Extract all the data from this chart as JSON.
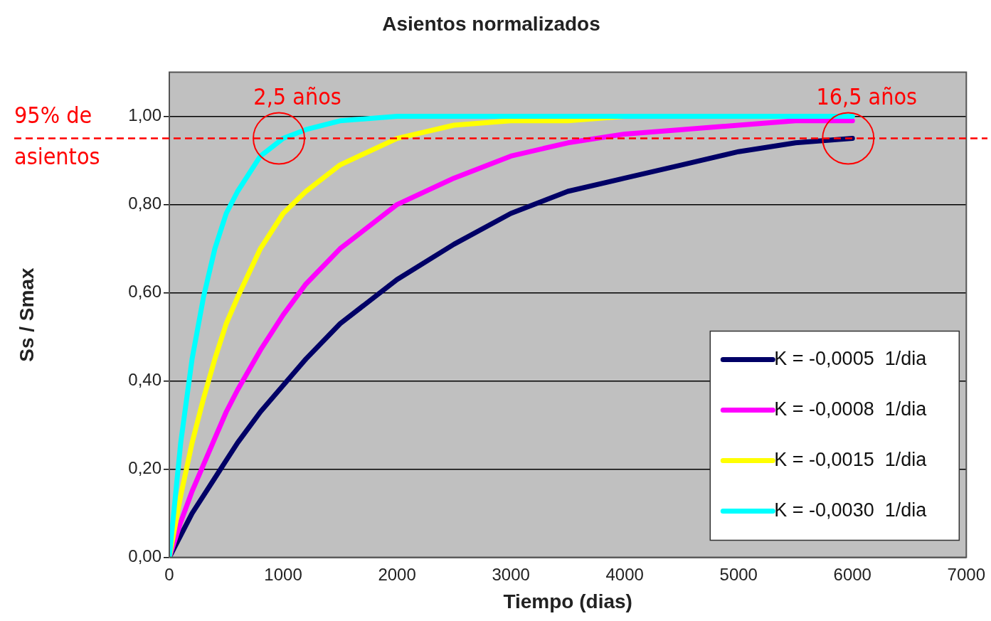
{
  "chart_data": {
    "type": "line",
    "title": "Asientos normalizados",
    "xlabel": "Tiempo (dias)",
    "ylabel": "Ss / Smax",
    "x": [
      0,
      100,
      200,
      300,
      400,
      500,
      600,
      800,
      1000,
      1200,
      1500,
      2000,
      2500,
      3000,
      3500,
      4000,
      4500,
      5000,
      5500,
      6000
    ],
    "series": [
      {
        "name": "K = -0,0005  1/dia",
        "color": "#000066",
        "values": [
          0,
          0.05,
          0.1,
          0.14,
          0.18,
          0.22,
          0.26,
          0.33,
          0.39,
          0.45,
          0.53,
          0.63,
          0.71,
          0.78,
          0.83,
          0.86,
          0.89,
          0.92,
          0.94,
          0.95
        ]
      },
      {
        "name": "K = -0,0008  1/dia",
        "color": "#ff00ff",
        "values": [
          0,
          0.08,
          0.15,
          0.21,
          0.27,
          0.33,
          0.38,
          0.47,
          0.55,
          0.62,
          0.7,
          0.8,
          0.86,
          0.91,
          0.94,
          0.96,
          0.97,
          0.98,
          0.99,
          0.99
        ]
      },
      {
        "name": "K = -0,0015  1/dia",
        "color": "#ffff00",
        "values": [
          0,
          0.14,
          0.26,
          0.36,
          0.45,
          0.53,
          0.59,
          0.7,
          0.78,
          0.83,
          0.89,
          0.95,
          0.98,
          0.99,
          0.99,
          1.0,
          null,
          null,
          null,
          null
        ]
      },
      {
        "name": "K = -0,0030  1/dia",
        "color": "#00ffff",
        "values": [
          0,
          0.26,
          0.45,
          0.59,
          0.7,
          0.78,
          0.83,
          0.91,
          0.95,
          0.97,
          0.99,
          1.0,
          1.0,
          1.0,
          1.0,
          1.0,
          1.0,
          1.0,
          1.0,
          1.0
        ]
      }
    ],
    "xlim": [
      0,
      7000
    ],
    "xticks": [
      0,
      1000,
      2000,
      3000,
      4000,
      5000,
      6000,
      7000
    ],
    "ylim": [
      0,
      1.1
    ],
    "yticks": [
      {
        "value": 0,
        "label": "0,00"
      },
      {
        "value": 0.2,
        "label": "0,20"
      },
      {
        "value": 0.4,
        "label": "0,40"
      },
      {
        "value": 0.6,
        "label": "0,60"
      },
      {
        "value": 0.8,
        "label": "0,80"
      },
      {
        "value": 1,
        "label": "1,00"
      }
    ],
    "grid": "y",
    "legend": "bottom right",
    "marker": "none",
    "line_style": "solid",
    "ref_lines": [
      {
        "axis": "y",
        "value": 0.95,
        "label": "95% de asientos",
        "color": "#ff0000",
        "line_style": "dashed"
      }
    ],
    "annotations": [
      {
        "text": "2,5 años",
        "x": 1000,
        "y": 0.95
      },
      {
        "text": "16,5 años",
        "x": 6000,
        "y": 0.95
      }
    ]
  }
}
